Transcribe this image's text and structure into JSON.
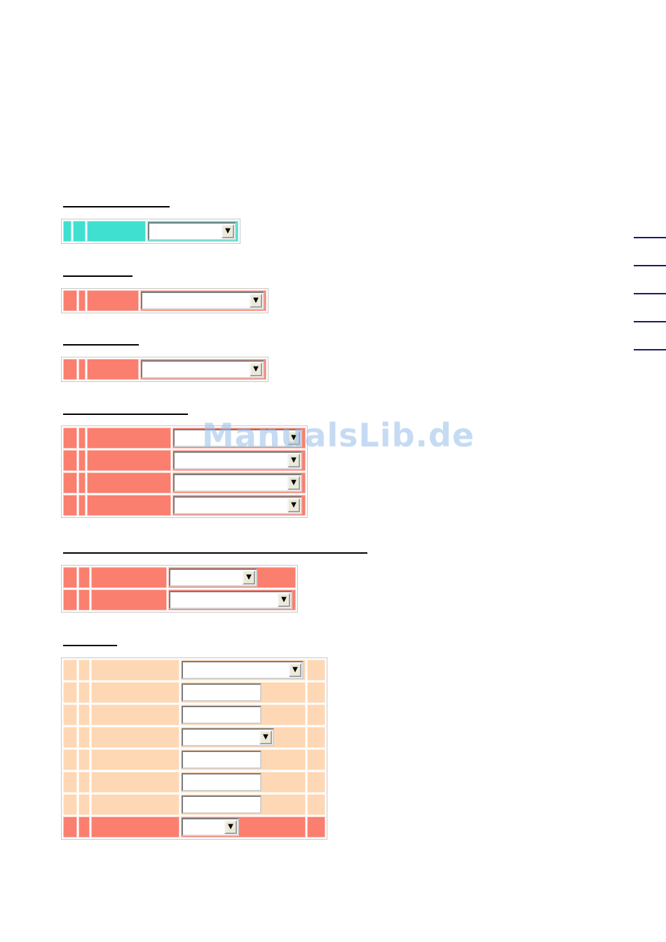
{
  "watermark": "ManualsLib.de",
  "colors": {
    "teal": "#40e0d0",
    "salmon": "#fa7f6f",
    "peach": "#fed8b4",
    "dropdown_button": "#ece9d8"
  },
  "icons": {
    "dropdown_arrow": "▼"
  },
  "sections": [
    {
      "heading": "",
      "rows": [
        {
          "label": "",
          "select_value": ""
        }
      ]
    },
    {
      "heading": "",
      "rows": [
        {
          "label": "",
          "select_value": ""
        }
      ]
    },
    {
      "heading": "",
      "rows": [
        {
          "label": "",
          "select_value": ""
        }
      ]
    },
    {
      "heading": "",
      "rows": [
        {
          "label": "",
          "select_value": ""
        },
        {
          "label": "",
          "select_value": ""
        },
        {
          "label": "",
          "select_value": ""
        },
        {
          "label": "",
          "select_value": ""
        }
      ]
    },
    {
      "heading": "",
      "rows": [
        {
          "label": "",
          "select_value": ""
        },
        {
          "label": "",
          "select_value": ""
        }
      ]
    },
    {
      "heading": "",
      "rows": [
        {
          "label": "",
          "control": "select",
          "value": ""
        },
        {
          "label": "",
          "control": "text",
          "value": ""
        },
        {
          "label": "",
          "control": "text",
          "value": ""
        },
        {
          "label": "",
          "control": "select",
          "value": ""
        },
        {
          "label": "",
          "control": "text",
          "value": ""
        },
        {
          "label": "",
          "control": "text",
          "value": ""
        },
        {
          "label": "",
          "control": "text",
          "value": ""
        },
        {
          "label": "",
          "control": "select",
          "value": ""
        }
      ]
    }
  ],
  "side_links": [
    "",
    "",
    "",
    "",
    ""
  ]
}
